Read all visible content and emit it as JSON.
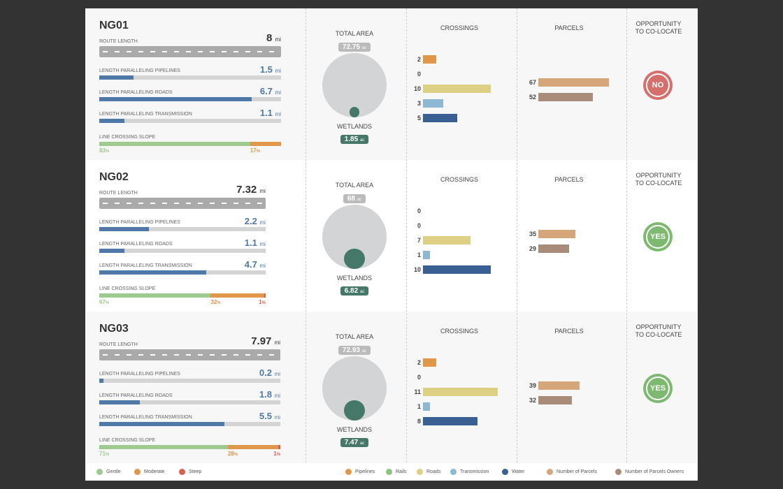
{
  "colors": {
    "gentle": "#9ec98f",
    "moderate": "#e0974a",
    "steep": "#d9604f",
    "pipelines": "#e0974a",
    "rails": "#8cc47f",
    "roads": "#ddd084",
    "transmission": "#8db7d2",
    "water": "#3a5f92",
    "parcels": "#d4a67a",
    "owners": "#a88b79",
    "total": "#d3d4d6",
    "wetlands": "#457869",
    "yes": "#7dba6f",
    "no": "#d56f6b",
    "paralleling": "#4e79a7"
  },
  "labels": {
    "route": "ROUTE LENGTH",
    "pipelines": "LENGTH PARALLELING PIPELINES",
    "roads": "LENGTH PARALLELING ROADS",
    "transmission": "LENGTH PARALLELING TRANSMISSION",
    "slope": "LINE CROSSING SLOPE",
    "unit_mi": "mi",
    "unit_ac": "ac",
    "unit_pct": "%",
    "total_area": "TOTAL AREA",
    "wetlands": "WETLANDS",
    "crossings": "CROSSINGS",
    "parcels": "PARCELS",
    "opp1": "OPPORTUNITY",
    "opp2": "TO CO-LOCATE"
  },
  "rows": [
    {
      "name": "NG01",
      "route": "8",
      "pipelines": "1.5",
      "roads": "6.7",
      "transmission": "1.1",
      "slope": [
        83,
        17,
        0
      ],
      "total_area": "72.75",
      "wetlands": "1.85",
      "crossings": [
        2,
        0,
        10,
        3,
        5
      ],
      "parcels": [
        67,
        52
      ],
      "opportunity": "NO"
    },
    {
      "name": "NG02",
      "route": "7.32",
      "pipelines": "2.2",
      "roads": "1.1",
      "transmission": "4.7",
      "slope": [
        67,
        32,
        1
      ],
      "total_area": "68",
      "wetlands": "6.82",
      "crossings": [
        0,
        0,
        7,
        1,
        10
      ],
      "parcels": [
        35,
        29
      ],
      "opportunity": "YES"
    },
    {
      "name": "NG03",
      "route": "7.97",
      "pipelines": "0.2",
      "roads": "1.8",
      "transmission": "5.5",
      "slope": [
        71,
        28,
        1
      ],
      "total_area": "72.93",
      "wetlands": "7.47",
      "crossings": [
        2,
        0,
        11,
        1,
        8
      ],
      "parcels": [
        39,
        32
      ],
      "opportunity": "YES"
    }
  ],
  "legend": {
    "slope": [
      {
        "key": "gentle",
        "label": "Gentle"
      },
      {
        "key": "moderate",
        "label": "Moderate"
      },
      {
        "key": "steep",
        "label": "Steep"
      }
    ],
    "crossings": [
      {
        "key": "pipelines",
        "label": "Pipelines"
      },
      {
        "key": "rails",
        "label": "Rails"
      },
      {
        "key": "roads",
        "label": "Roads"
      },
      {
        "key": "transmission",
        "label": "Transmission"
      },
      {
        "key": "water",
        "label": "Water"
      }
    ],
    "parcels": [
      {
        "key": "parcels",
        "label": "Number of Parcels"
      },
      {
        "key": "owners",
        "label": "Number of Parcels Owners"
      }
    ]
  }
}
